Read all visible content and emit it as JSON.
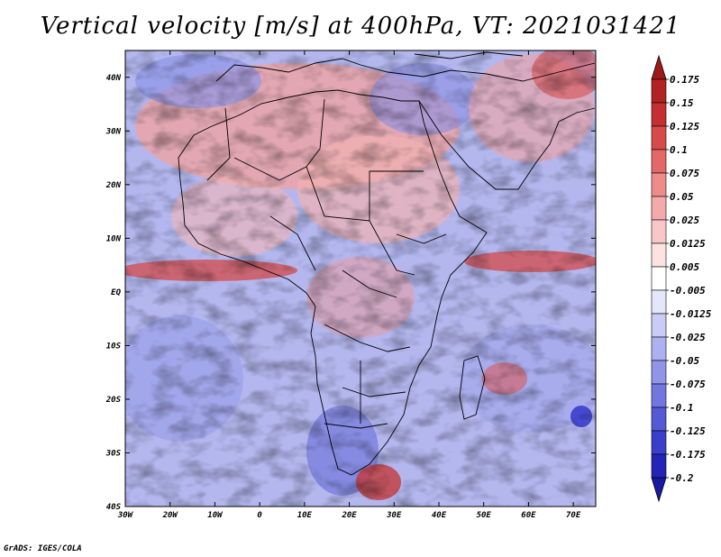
{
  "title": "Vertical velocity [m/s] at 400hPa, VT: 2021031421",
  "credit": "GrADS: IGES/COLA",
  "map": {
    "lat_range": [
      -40,
      45
    ],
    "lon_range": [
      -30,
      75
    ],
    "lat_ticks": [
      {
        "v": 40,
        "label": "40N"
      },
      {
        "v": 30,
        "label": "30N"
      },
      {
        "v": 20,
        "label": "20N"
      },
      {
        "v": 10,
        "label": "10N"
      },
      {
        "v": 0,
        "label": "EQ"
      },
      {
        "v": -10,
        "label": "10S"
      },
      {
        "v": -20,
        "label": "20S"
      },
      {
        "v": -30,
        "label": "30S"
      },
      {
        "v": -40,
        "label": "40S"
      }
    ],
    "lon_ticks": [
      {
        "v": -30,
        "label": "30W"
      },
      {
        "v": -20,
        "label": "20W"
      },
      {
        "v": -10,
        "label": "10W"
      },
      {
        "v": 0,
        "label": "0"
      },
      {
        "v": 10,
        "label": "10E"
      },
      {
        "v": 20,
        "label": "20E"
      },
      {
        "v": 30,
        "label": "30E"
      },
      {
        "v": 40,
        "label": "40E"
      },
      {
        "v": 50,
        "label": "50E"
      },
      {
        "v": 60,
        "label": "60E"
      },
      {
        "v": 70,
        "label": "70E"
      }
    ]
  },
  "colorbar": {
    "labels": [
      "0.175",
      "0.15",
      "0.125",
      "0.1",
      "0.075",
      "0.05",
      "0.025",
      "0.0125",
      "0.005",
      "-0.005",
      "-0.0125",
      "-0.025",
      "-0.05",
      "-0.075",
      "-0.1",
      "-0.125",
      "-0.175",
      "-0.2"
    ],
    "colors": [
      "#b22222",
      "#c52f2f",
      "#d84a4a",
      "#e46868",
      "#ee8c8c",
      "#f4aaaa",
      "#f9c7c7",
      "#fde2e2",
      "#ffffff",
      "#e4e6fa",
      "#c9ccf5",
      "#adb1ef",
      "#9095e8",
      "#7277e0",
      "#5459d6",
      "#3a3ecb",
      "#2424b8",
      "#1a1aa0"
    ],
    "top_color": "#a01818",
    "bottom_color": "#1a1aa0"
  }
}
